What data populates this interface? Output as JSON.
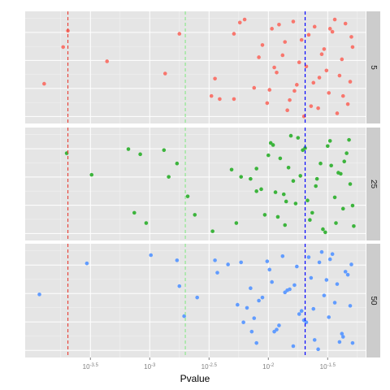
{
  "chart_data": {
    "type": "scatter",
    "x_label": "Pvalue",
    "log_base": 10,
    "xlim": [
      -4.05,
      -1.18
    ],
    "xticks": [
      -3.5,
      -3,
      -2.5,
      -2,
      -1.5
    ],
    "ylim": [
      -0.05,
      1.05
    ],
    "grid": true,
    "reference_lines": [
      {
        "x": -3.69,
        "color": "#e8473e"
      },
      {
        "x": -2.7,
        "color": "#8fe88f"
      },
      {
        "x": -1.69,
        "color": "#0000ff"
      }
    ],
    "series": [
      {
        "name": "5",
        "color": "#f8766d",
        "x": [
          -3.69,
          -3.73,
          -3.36,
          -3.89,
          -2.87,
          -2.75,
          -2.45,
          -2.29,
          -2.24,
          -2.2,
          -2.48,
          -2.41,
          -2.29,
          -2.12,
          -2.05,
          -2.01,
          -1.97,
          -1.93,
          -1.88,
          -1.84,
          -1.79,
          -1.76,
          -1.72,
          -1.68,
          -1.64,
          -1.61,
          -1.57,
          -1.53,
          -1.49,
          -1.46,
          -1.42,
          -1.38,
          -1.35,
          -1.31,
          -1.29,
          -2.08,
          -1.99,
          -1.91,
          -1.82,
          -1.74,
          -1.66,
          -1.58,
          -1.51,
          -1.44,
          -1.37,
          -1.3,
          -1.86,
          -1.7,
          -1.55,
          -1.4,
          -1.33,
          -1.62,
          -1.48,
          -1.95,
          -1.78
        ],
        "values": [
          0.86,
          0.7,
          0.56,
          0.34,
          0.44,
          0.83,
          0.39,
          0.83,
          0.94,
          0.97,
          0.22,
          0.19,
          0.19,
          0.3,
          0.72,
          0.15,
          0.88,
          0.45,
          0.62,
          0.08,
          0.95,
          0.33,
          0.77,
          0.51,
          0.12,
          0.9,
          0.4,
          0.68,
          0.25,
          0.85,
          0.05,
          0.58,
          0.93,
          0.36,
          0.7,
          0.6,
          0.28,
          0.92,
          0.18,
          0.55,
          0.82,
          0.1,
          0.47,
          0.97,
          0.22,
          0.8,
          0.75,
          0.02,
          0.63,
          0.42,
          0.14,
          0.35,
          0.88,
          0.5,
          0.27
        ]
      },
      {
        "name": "25",
        "color": "#3cb43c",
        "x": [
          -3.7,
          -3.49,
          -3.18,
          -3.08,
          -2.88,
          -2.77,
          -2.84,
          -2.68,
          -3.13,
          -3.03,
          -2.62,
          -2.47,
          -2.27,
          -2.31,
          -2.23,
          -2.15,
          -2.1,
          -2.1,
          -2.03,
          -1.98,
          -1.94,
          -1.9,
          -1.86,
          -1.81,
          -1.77,
          -1.73,
          -1.69,
          -1.65,
          -1.6,
          -1.56,
          -1.52,
          -1.48,
          -1.44,
          -1.41,
          -1.37,
          -1.34,
          -1.31,
          -1.28,
          -2.06,
          -2.0,
          -1.92,
          -1.83,
          -1.75,
          -1.67,
          -1.59,
          -1.5,
          -1.43,
          -1.36,
          -1.29,
          -1.87,
          -1.71,
          -1.54,
          -1.39,
          -1.32,
          -1.63,
          -1.47,
          -1.96,
          -1.79,
          -1.85
        ],
        "values": [
          0.8,
          0.59,
          0.84,
          0.79,
          0.83,
          0.7,
          0.57,
          0.38,
          0.22,
          0.12,
          0.2,
          0.04,
          0.12,
          0.64,
          0.57,
          0.55,
          0.43,
          0.65,
          0.2,
          0.9,
          0.42,
          0.75,
          0.1,
          0.97,
          0.31,
          0.58,
          0.85,
          0.15,
          0.48,
          0.7,
          0.03,
          0.92,
          0.37,
          0.61,
          0.26,
          0.8,
          0.5,
          0.09,
          0.45,
          0.78,
          0.18,
          0.66,
          0.95,
          0.34,
          0.55,
          0.87,
          0.12,
          0.72,
          0.29,
          0.4,
          0.83,
          0.06,
          0.6,
          0.93,
          0.22,
          0.68,
          0.88,
          0.53,
          0.33
        ]
      },
      {
        "name": "50",
        "color": "#619cff",
        "x": [
          -3.93,
          -3.53,
          -2.99,
          -2.77,
          -2.45,
          -2.34,
          -2.75,
          -2.71,
          -2.6,
          -2.43,
          -2.23,
          -2.26,
          -2.15,
          -2.21,
          -2.1,
          -2.14,
          -2.18,
          -2.12,
          -2.05,
          -2.01,
          -1.97,
          -1.93,
          -1.88,
          -1.84,
          -1.79,
          -1.76,
          -1.72,
          -1.68,
          -1.64,
          -1.61,
          -1.57,
          -1.53,
          -1.49,
          -1.46,
          -1.42,
          -1.38,
          -1.35,
          -1.31,
          -1.29,
          -2.08,
          -1.99,
          -1.91,
          -1.82,
          -1.74,
          -1.66,
          -1.58,
          -1.51,
          -1.44,
          -1.37,
          -1.3,
          -1.86,
          -1.7,
          -1.55,
          -1.4,
          -1.33,
          -1.62,
          -1.48,
          -1.95,
          -1.78
        ],
        "values": [
          0.56,
          0.86,
          0.94,
          0.89,
          0.89,
          0.85,
          0.64,
          0.35,
          0.53,
          0.77,
          0.87,
          0.46,
          0.62,
          0.29,
          0.09,
          0.2,
          0.43,
          0.33,
          0.53,
          0.88,
          0.68,
          0.22,
          0.93,
          0.6,
          0.06,
          0.83,
          0.4,
          0.29,
          0.72,
          0.12,
          0.87,
          0.55,
          0.34,
          0.95,
          0.66,
          0.18,
          0.78,
          0.45,
          0.09,
          0.5,
          0.8,
          0.26,
          0.61,
          0.37,
          0.92,
          0.03,
          0.7,
          0.48,
          0.15,
          0.85,
          0.58,
          0.31,
          0.97,
          0.1,
          0.75,
          0.42,
          0.9,
          0.2,
          0.65
        ]
      }
    ]
  }
}
